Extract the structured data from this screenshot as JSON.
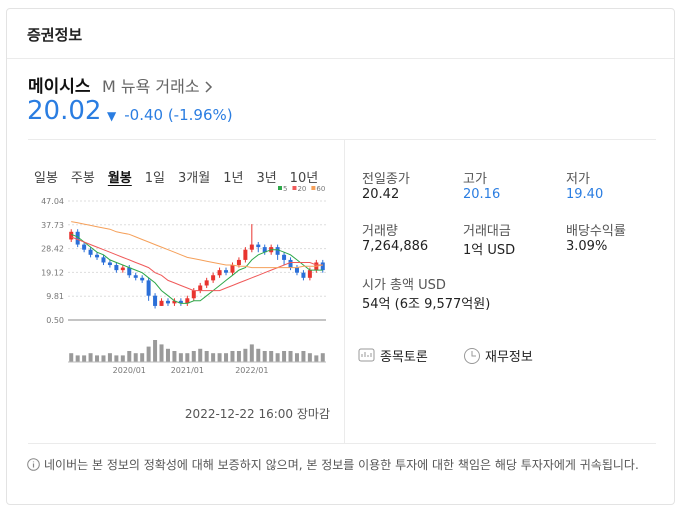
{
  "header": {
    "title": "증권정보"
  },
  "stock": {
    "name": "메이시스",
    "exchange": "M 뉴욕 거래소",
    "price": "20.02",
    "change_arrow": "▼",
    "change": "-0.40",
    "change_rate": "(-1.96%)"
  },
  "tabs": {
    "items": [
      "일봉",
      "주봉",
      "월봉",
      "1일",
      "3개월",
      "1년",
      "3년",
      "10년"
    ],
    "active": "월봉"
  },
  "chart_data": {
    "type": "candlestick",
    "categories": [
      null,
      null,
      null,
      null,
      null,
      null,
      null,
      null,
      null,
      "2020/01",
      null,
      null,
      null,
      null,
      null,
      null,
      null,
      null,
      "2021/01",
      null,
      null,
      null,
      null,
      null,
      null,
      null,
      null,
      null,
      "2022/01",
      null,
      null,
      null,
      null,
      null,
      null,
      null,
      null,
      null,
      null,
      null
    ],
    "open": [
      32,
      35,
      30,
      28,
      26,
      25,
      23,
      22,
      20,
      21,
      18,
      17,
      16,
      10,
      6,
      8,
      7,
      8,
      7,
      9,
      12,
      14,
      16,
      18,
      20,
      19,
      22,
      24,
      28,
      30,
      29,
      27,
      29,
      26,
      24,
      21,
      19,
      17,
      20,
      23
    ],
    "close": [
      35,
      30,
      28,
      26,
      25,
      23,
      22,
      20,
      21,
      18,
      17,
      16,
      10,
      6,
      8,
      7,
      8,
      7,
      9,
      12,
      14,
      16,
      18,
      20,
      19,
      22,
      24,
      28,
      30,
      29,
      27,
      29,
      26,
      24,
      21,
      19,
      17,
      20,
      23,
      20.02
    ],
    "high": [
      36,
      36,
      31,
      29,
      27,
      26,
      24,
      23,
      22,
      22,
      19,
      18,
      17,
      11,
      9,
      9,
      9,
      9,
      10,
      13,
      15,
      17,
      19,
      21,
      21,
      23,
      25,
      29,
      38,
      31,
      30,
      30,
      30,
      27,
      25,
      22,
      20,
      21,
      24,
      24
    ],
    "low": [
      31,
      29,
      27,
      25,
      24,
      22,
      21,
      19,
      19,
      17,
      16,
      15,
      8,
      5,
      6,
      6,
      6,
      6,
      6,
      8,
      11,
      13,
      15,
      17,
      18,
      18,
      21,
      23,
      27,
      27,
      26,
      26,
      24,
      22,
      20,
      18,
      16,
      16,
      19,
      19
    ],
    "volume": [
      4,
      3,
      3,
      4,
      3,
      3,
      4,
      3,
      3,
      5,
      4,
      4,
      7,
      10,
      8,
      6,
      5,
      4,
      4,
      5,
      6,
      5,
      4,
      4,
      4,
      5,
      5,
      6,
      8,
      6,
      5,
      5,
      4,
      5,
      5,
      4,
      5,
      4,
      3,
      4
    ],
    "series": [
      {
        "name": "5",
        "color": "#2ea84a",
        "values": [
          34,
          33,
          31,
          29,
          27,
          26,
          24,
          23,
          22,
          21,
          20,
          19,
          17,
          15,
          12,
          10,
          8,
          7,
          7,
          8,
          8,
          10,
          12,
          14,
          16,
          18,
          20,
          21,
          24,
          26,
          27,
          28,
          28,
          27,
          26,
          24,
          22,
          20,
          20,
          20
        ]
      },
      {
        "name": "20",
        "color": "#f05a5a",
        "values": [
          33,
          32,
          31,
          30,
          29,
          28,
          27,
          26,
          25,
          24,
          23,
          22,
          21,
          19,
          18,
          16,
          15,
          14,
          13,
          12,
          12,
          12,
          12,
          12,
          13,
          14,
          15,
          16,
          17,
          18,
          19,
          20,
          21,
          22,
          23,
          23,
          23,
          23,
          22,
          22
        ]
      },
      {
        "name": "60",
        "color": "#f5a05a",
        "values": [
          39,
          38.5,
          38,
          37.5,
          37,
          36.5,
          36,
          35,
          34.5,
          34,
          33,
          32,
          31,
          30,
          29,
          28,
          27,
          26,
          25,
          24.5,
          24,
          23.5,
          23,
          22.5,
          22,
          22,
          21.5,
          21.5,
          21,
          21,
          21,
          21,
          21,
          21,
          21,
          21,
          21.5,
          21.5,
          21.5,
          22
        ]
      }
    ],
    "up_color": "#e8342f",
    "down_color": "#2b6fd8",
    "volume_color": "#9a9a9a",
    "ylim": [
      0.5,
      47.04
    ],
    "yticks": [
      {
        "value": 0.5,
        "label": "0.50"
      },
      9.81,
      19.12,
      28.42,
      37.73,
      47.04
    ],
    "grid": true,
    "timestamp": "2022-12-22 16:00 장마감"
  },
  "info": {
    "items": [
      {
        "label": "전일종가",
        "value": "20.42"
      },
      {
        "label": "고가",
        "value": "20.16"
      },
      {
        "label": "저가",
        "value": "19.40"
      },
      {
        "label": "거래량",
        "value": "7,264,886"
      },
      {
        "label": "거래대금",
        "value": "1억 USD"
      },
      {
        "label": "배당수익률",
        "value": "3.09%"
      }
    ],
    "market_cap_label": "시가 총액 USD",
    "market_cap_value": "54억 (6조 9,577억원)"
  },
  "links": [
    "종목토론",
    "재무정보"
  ],
  "disclaimer": "네이버는 본 정보의 정확성에 대해 보증하지 않으며, 본 정보를 이용한 투자에 대한 책임은 해당 투자자에게 귀속됩니다."
}
